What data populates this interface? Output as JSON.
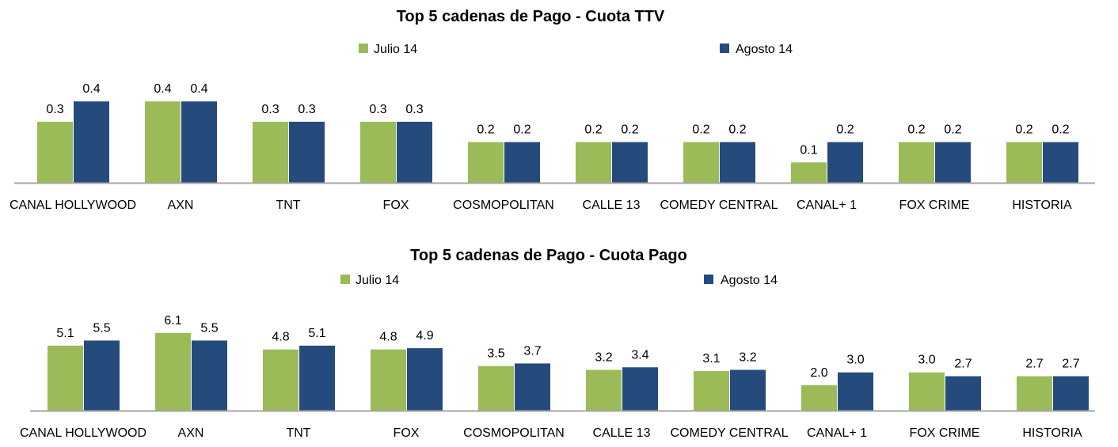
{
  "colors": {
    "julio": "#9BBB59",
    "agosto": "#254B7C",
    "axis": "#A6A6A6"
  },
  "chart_data": [
    {
      "type": "bar",
      "title": "Top 5  cadenas de Pago - Cuota TTV",
      "categories": [
        "CANAL HOLLYWOOD",
        "AXN",
        "TNT",
        "FOX",
        "COSMOPOLITAN",
        "CALLE 13",
        "COMEDY CENTRAL",
        "CANAL+ 1",
        "FOX CRIME",
        "HISTORIA"
      ],
      "series": [
        {
          "name": "Julio 14",
          "values": [
            0.3,
            0.4,
            0.3,
            0.3,
            0.2,
            0.2,
            0.2,
            0.1,
            0.2,
            0.2
          ]
        },
        {
          "name": "Agosto 14",
          "values": [
            0.4,
            0.4,
            0.3,
            0.3,
            0.2,
            0.2,
            0.2,
            0.2,
            0.2,
            0.2
          ]
        }
      ],
      "legend": "top",
      "grid": false
    },
    {
      "type": "bar",
      "title": "Top 5  cadenas de Pago - Cuota Pago",
      "categories": [
        "CANAL HOLLYWOOD",
        "AXN",
        "TNT",
        "FOX",
        "COSMOPOLITAN",
        "CALLE 13",
        "COMEDY CENTRAL",
        "CANAL+ 1",
        "FOX CRIME",
        "HISTORIA"
      ],
      "series": [
        {
          "name": "Julio 14",
          "values": [
            5.1,
            6.1,
            4.8,
            4.8,
            3.5,
            3.2,
            3.1,
            2.0,
            3.0,
            2.7
          ]
        },
        {
          "name": "Agosto 14",
          "values": [
            5.5,
            5.5,
            5.1,
            4.9,
            3.7,
            3.4,
            3.2,
            3.0,
            2.7,
            2.7
          ]
        }
      ],
      "legend": "top",
      "grid": false
    }
  ]
}
